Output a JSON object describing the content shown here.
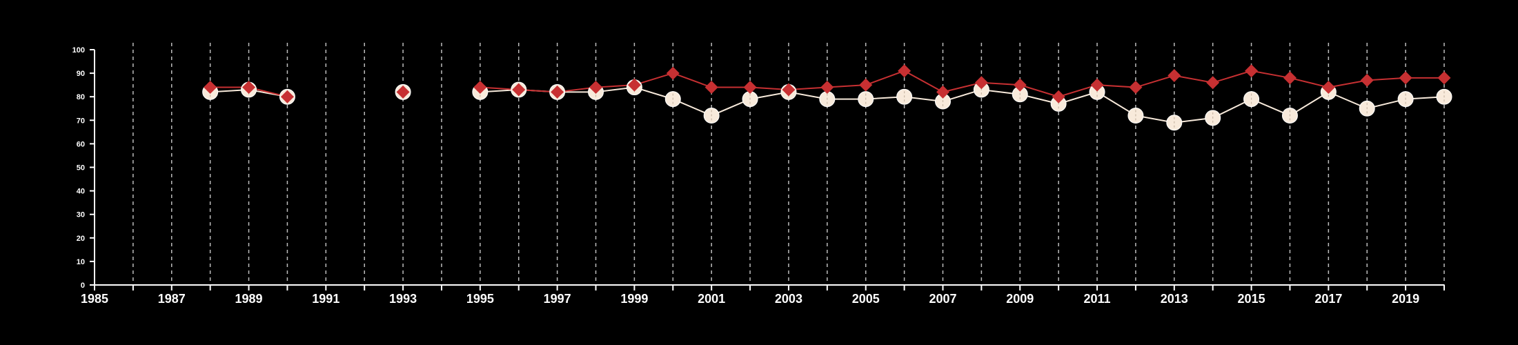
{
  "chart_data": {
    "type": "line",
    "title": "",
    "xlabel": "",
    "ylabel": "",
    "xlim": [
      1985,
      2020
    ],
    "ylim": [
      0,
      100
    ],
    "x_ticks": [
      "1985",
      "1987",
      "1989",
      "1991",
      "1993",
      "1995",
      "1997",
      "1999",
      "2001",
      "2003",
      "2005",
      "2007",
      "2009",
      "2011",
      "2013",
      "2015",
      "2017",
      "2019"
    ],
    "y_ticks": [
      "0",
      "10",
      "20",
      "30",
      "40",
      "50",
      "60",
      "70",
      "80",
      "90",
      "100"
    ],
    "grid": "vertical dashed lines at every year",
    "legend": "none",
    "colors": {
      "background": "#000000",
      "axis": "#ffffff",
      "grid": "#bdbdbd",
      "series_light": "#f8eadb",
      "series_red": "#c73032"
    },
    "series": [
      {
        "marker": "circle",
        "color": "#f8eadb",
        "segments": [
          [
            [
              1988,
              82
            ],
            [
              1989,
              83
            ],
            [
              1990,
              80
            ]
          ],
          [
            [
              1993,
              82
            ]
          ],
          [
            [
              1995,
              82
            ],
            [
              1996,
              83
            ],
            [
              1997,
              82
            ],
            [
              1998,
              82
            ],
            [
              1999,
              84
            ],
            [
              2000,
              79
            ],
            [
              2001,
              72
            ],
            [
              2002,
              79
            ],
            [
              2003,
              82
            ],
            [
              2004,
              79
            ],
            [
              2005,
              79
            ],
            [
              2006,
              80
            ],
            [
              2007,
              78
            ],
            [
              2008,
              83
            ],
            [
              2009,
              81
            ],
            [
              2010,
              77
            ],
            [
              2011,
              82
            ],
            [
              2012,
              72
            ],
            [
              2013,
              69
            ],
            [
              2014,
              71
            ],
            [
              2015,
              79
            ],
            [
              2016,
              72
            ],
            [
              2017,
              82
            ],
            [
              2018,
              75
            ],
            [
              2019,
              79
            ],
            [
              2020,
              80
            ]
          ]
        ]
      },
      {
        "marker": "diamond",
        "color": "#c73032",
        "segments": [
          [
            [
              1988,
              84
            ],
            [
              1989,
              84
            ],
            [
              1990,
              80
            ]
          ],
          [
            [
              1993,
              82
            ]
          ],
          [
            [
              1995,
              84
            ],
            [
              1996,
              83
            ],
            [
              1997,
              82
            ],
            [
              1998,
              84
            ],
            [
              1999,
              85
            ],
            [
              2000,
              90
            ],
            [
              2001,
              84
            ],
            [
              2002,
              84
            ],
            [
              2003,
              83
            ],
            [
              2004,
              84
            ],
            [
              2005,
              85
            ],
            [
              2006,
              91
            ],
            [
              2007,
              82
            ],
            [
              2008,
              86
            ],
            [
              2009,
              85
            ],
            [
              2010,
              80
            ],
            [
              2011,
              85
            ],
            [
              2012,
              84
            ],
            [
              2013,
              89
            ],
            [
              2014,
              86
            ],
            [
              2015,
              91
            ],
            [
              2016,
              88
            ],
            [
              2017,
              84
            ],
            [
              2018,
              87
            ],
            [
              2019,
              88
            ],
            [
              2020,
              88
            ]
          ]
        ]
      }
    ]
  }
}
